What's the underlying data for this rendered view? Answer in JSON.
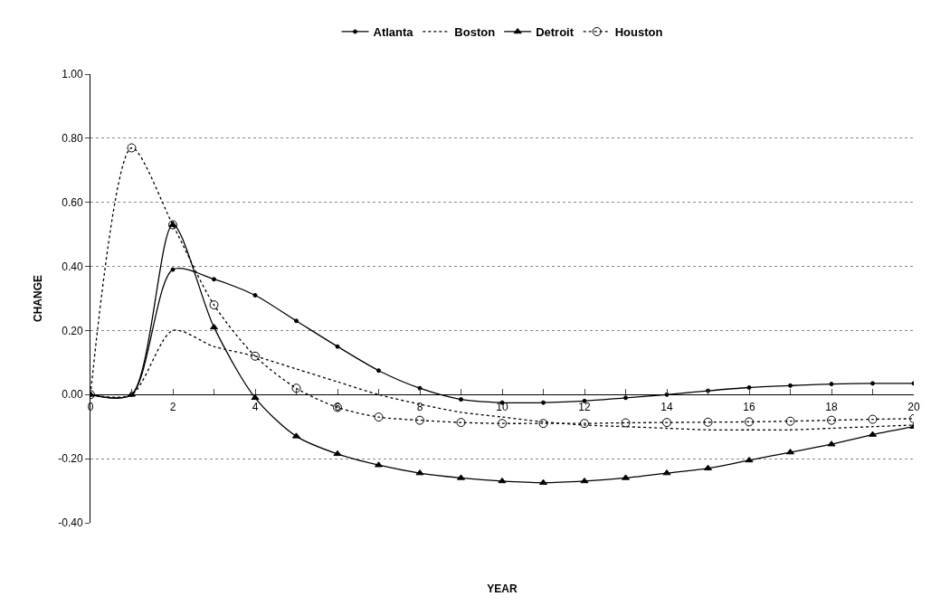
{
  "chart_data": {
    "type": "line",
    "xlabel": "YEAR",
    "ylabel": "CHANGE",
    "x": [
      0,
      1,
      2,
      3,
      4,
      5,
      6,
      7,
      8,
      9,
      10,
      11,
      12,
      13,
      14,
      15,
      16,
      17,
      18,
      19,
      20
    ],
    "xlim": [
      0,
      20
    ],
    "xticks": [
      0,
      {
        "value": 1,
        "label": null
      },
      2,
      {
        "value": 3,
        "label": null
      },
      4,
      {
        "value": 5,
        "label": null
      },
      6,
      {
        "value": 7,
        "label": null
      },
      8,
      {
        "value": 9,
        "label": null
      },
      10,
      {
        "value": 11,
        "label": null
      },
      12,
      {
        "value": 13,
        "label": null
      },
      14,
      {
        "value": 15,
        "label": null
      },
      16,
      {
        "value": 17,
        "label": null
      },
      18,
      {
        "value": 19,
        "label": null
      },
      20
    ],
    "ylim": [
      -0.4,
      1.0
    ],
    "yticks": [
      {
        "value": -0.4,
        "label": "-0.40"
      },
      {
        "value": -0.2,
        "label": "-0.20"
      },
      {
        "value": 0,
        "label": "0.00"
      },
      {
        "value": 0.2,
        "label": "0.20"
      },
      {
        "value": 0.4,
        "label": "0.40"
      },
      {
        "value": 0.6,
        "label": "0.60"
      },
      {
        "value": 0.8,
        "label": "0.80"
      },
      {
        "value": 1.0,
        "label": "1.00"
      }
    ],
    "grid": "y",
    "legend": "top",
    "series": [
      {
        "name": "Atlanta",
        "color": "#000000",
        "marker": "circle",
        "line_style": "solid",
        "values": [
          0,
          0,
          0.39,
          0.36,
          0.31,
          0.23,
          0.15,
          0.075,
          0.02,
          -0.015,
          -0.025,
          -0.025,
          -0.02,
          -0.01,
          0.0,
          0.012,
          0.022,
          0.028,
          0.033,
          0.035,
          0.035
        ]
      },
      {
        "name": "Boston",
        "color": "#000000",
        "marker": "none",
        "line_style": "dotted",
        "values": [
          0,
          0,
          0.2,
          0.15,
          0.12,
          0.08,
          0.04,
          0.0,
          -0.03,
          -0.055,
          -0.07,
          -0.085,
          -0.095,
          -0.1,
          -0.105,
          -0.11,
          -0.11,
          -0.11,
          -0.105,
          -0.1,
          -0.095
        ]
      },
      {
        "name": "Detroit",
        "color": "#000000",
        "marker": "triangle",
        "line_style": "solid",
        "values": [
          0,
          0,
          0.53,
          0.21,
          -0.01,
          -0.13,
          -0.185,
          -0.22,
          -0.245,
          -0.26,
          -0.27,
          -0.275,
          -0.27,
          -0.26,
          -0.245,
          -0.23,
          -0.205,
          -0.18,
          -0.155,
          -0.125,
          -0.1
        ]
      },
      {
        "name": "Houston",
        "color": "#000000",
        "marker": "circle-open",
        "line_style": "dotted",
        "values": [
          0,
          0.77,
          0.53,
          0.28,
          0.12,
          0.02,
          -0.04,
          -0.07,
          -0.08,
          -0.087,
          -0.09,
          -0.09,
          -0.09,
          -0.088,
          -0.087,
          -0.086,
          -0.085,
          -0.083,
          -0.08,
          -0.077,
          -0.075
        ]
      }
    ]
  }
}
